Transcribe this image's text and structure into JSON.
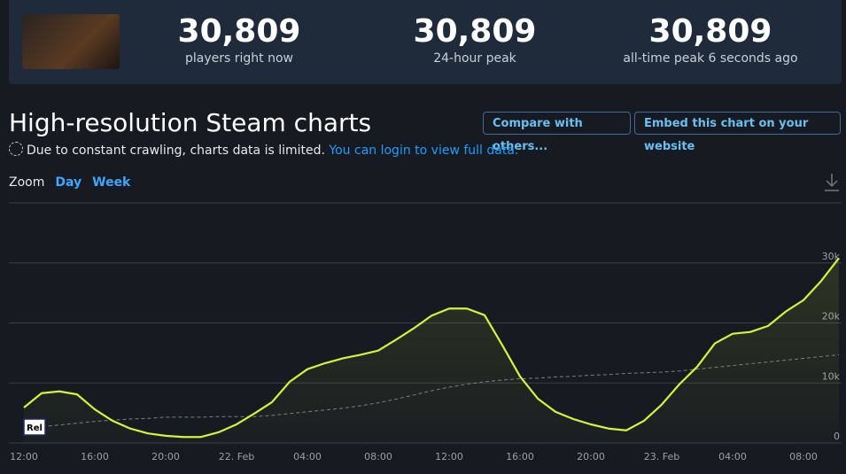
{
  "stats": [
    {
      "value": "30,809",
      "label": "players right now"
    },
    {
      "value": "30,809",
      "label": "24-hour peak"
    },
    {
      "value": "30,809",
      "label": "all-time peak 6 seconds ago"
    }
  ],
  "heading": {
    "title": "High-resolution Steam charts",
    "buttons": [
      "Compare with others...",
      "Embed this chart on your website"
    ],
    "notice": "Due to constant crawling, charts data is limited.",
    "link": "You can login to view full data."
  },
  "zoom": {
    "label": "Zoom",
    "options": [
      "Day",
      "Week"
    ]
  },
  "chart_data": {
    "type": "line",
    "categories": [
      "12:00",
      null,
      null,
      null,
      "16:00",
      null,
      null,
      null,
      "20:00",
      null,
      null,
      null,
      "22. Feb",
      null,
      null,
      null,
      "04:00",
      null,
      null,
      null,
      "08:00",
      null,
      null,
      null,
      "12:00",
      null,
      null,
      null,
      "16:00",
      null,
      null,
      null,
      "20:00",
      null,
      null,
      null,
      "23. Feb",
      null,
      null,
      null,
      "04:00",
      null,
      null,
      null,
      "08:00",
      null,
      null
    ],
    "series": [
      {
        "color": "#d6f23a",
        "values": [
          5900,
          8300,
          8600,
          8100,
          5600,
          3700,
          2400,
          1600,
          1200,
          1000,
          1000,
          1800,
          3100,
          4900,
          6800,
          10200,
          12300,
          13300,
          14100,
          14700,
          15400,
          17200,
          19100,
          21200,
          22400,
          22400,
          21300,
          16300,
          11100,
          7400,
          5200,
          4000,
          3100,
          2400,
          2100,
          3700,
          6400,
          9800,
          12700,
          16600,
          18200,
          18500,
          19500,
          21900,
          23800,
          27000,
          30809
        ]
      },
      {
        "color": "#7a7f86",
        "dashed": true,
        "values": [
          2400,
          2700,
          3000,
          3300,
          3600,
          3800,
          4000,
          4100,
          4300,
          4300,
          4300,
          4400,
          4400,
          4400,
          4600,
          4900,
          5200,
          5500,
          5800,
          6200,
          6700,
          7300,
          8000,
          8700,
          9300,
          9800,
          10200,
          10500,
          10700,
          10800,
          11000,
          11100,
          11300,
          11400,
          11600,
          11700,
          11800,
          12000,
          12300,
          12600,
          12900,
          13200,
          13500,
          13800,
          14100,
          14400,
          14700
        ]
      }
    ],
    "ylim": [
      0,
      40000
    ],
    "yticks": [
      0,
      {
        "value": 10000,
        "label": "10k"
      },
      {
        "value": 20000,
        "label": "20k"
      },
      {
        "value": 30000,
        "label": "30k"
      }
    ],
    "grid": true,
    "annotations": [
      {
        "text": "Rel",
        "index": 0
      }
    ]
  }
}
